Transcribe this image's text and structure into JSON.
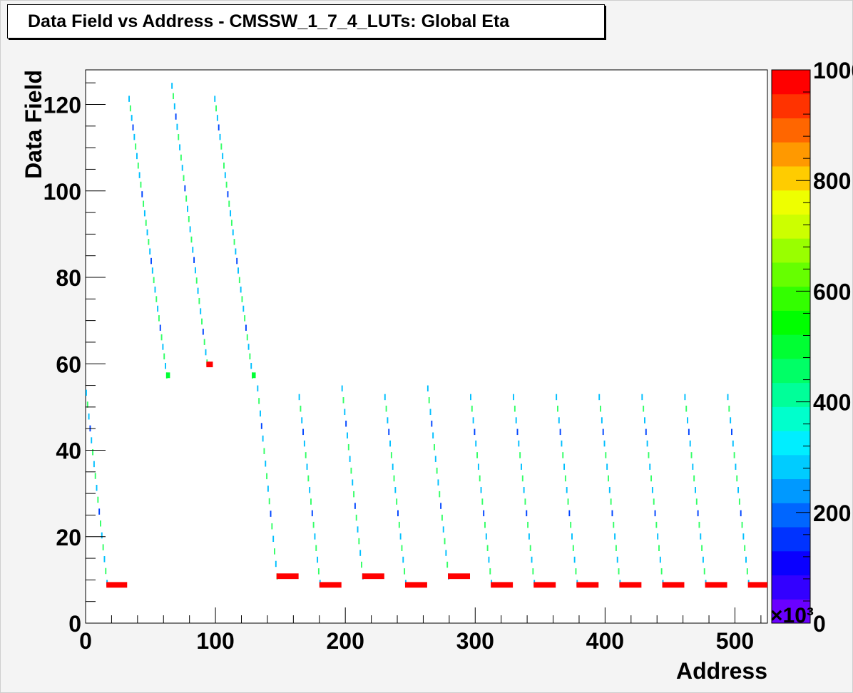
{
  "title": "Data Field vs Address - CMSSW_1_7_4_LUTs: Global Eta",
  "chart_data": {
    "type": "heatmap",
    "xlabel": "Address",
    "ylabel": "Data Field",
    "xlim": [
      0,
      525
    ],
    "ylim": [
      0,
      128
    ],
    "xticks": [
      "0",
      "100",
      "200",
      "300",
      "400",
      "500"
    ],
    "yticks": [
      "0",
      "20",
      "40",
      "60",
      "80",
      "100",
      "120"
    ],
    "z_axis": {
      "range": [
        0,
        1000000
      ],
      "multiplier_label": "×10³",
      "ticks": [
        "0",
        "200",
        "400",
        "600",
        "800",
        "1000"
      ],
      "palette": [
        "#6a00ff",
        "#3300ff",
        "#0a00ff",
        "#0033ff",
        "#0066ff",
        "#0099ff",
        "#00ccff",
        "#00eeff",
        "#00ffcc",
        "#00ff99",
        "#00ff66",
        "#00ff33",
        "#00ff00",
        "#33ff00",
        "#66ff00",
        "#99ff00",
        "#ccff00",
        "#eeff00",
        "#ffcc00",
        "#ff9900",
        "#ff6600",
        "#ff3300",
        "#ff0000"
      ]
    },
    "segments": [
      {
        "x0": 0,
        "x1": 16,
        "y_start": 53,
        "y_end": 9,
        "tail_end": 32,
        "tail_y": 8.5,
        "tail_color": "#ff0000"
      },
      {
        "x0": 33,
        "x1": 62,
        "y_start": 121,
        "y_end": 57,
        "tail_end": 65,
        "tail_y": 57,
        "tail_color": "#00ff33"
      },
      {
        "x0": 66,
        "x1": 93,
        "y_start": 124,
        "y_end": 60,
        "tail_end": 98,
        "tail_y": 59.5,
        "tail_color": "#ff0000"
      },
      {
        "x0": 99,
        "x1": 128,
        "y_start": 121,
        "y_end": 57,
        "tail_end": 131,
        "tail_y": 57,
        "tail_color": "#00ff33"
      },
      {
        "x0": 132,
        "x1": 147,
        "y_start": 54,
        "y_end": 10.5,
        "tail_end": 164,
        "tail_y": 10.5,
        "tail_color": "#ff0000"
      },
      {
        "x0": 164,
        "x1": 180,
        "y_start": 52,
        "y_end": 9,
        "tail_end": 197,
        "tail_y": 8.5,
        "tail_color": "#ff0000"
      },
      {
        "x0": 197,
        "x1": 213,
        "y_start": 54,
        "y_end": 10.5,
        "tail_end": 230,
        "tail_y": 10.5,
        "tail_color": "#ff0000"
      },
      {
        "x0": 230,
        "x1": 246,
        "y_start": 52,
        "y_end": 9,
        "tail_end": 263,
        "tail_y": 8.5,
        "tail_color": "#ff0000"
      },
      {
        "x0": 263,
        "x1": 279,
        "y_start": 54,
        "y_end": 10.5,
        "tail_end": 296,
        "tail_y": 10.5,
        "tail_color": "#ff0000"
      },
      {
        "x0": 296,
        "x1": 312,
        "y_start": 52,
        "y_end": 9,
        "tail_end": 329,
        "tail_y": 8.5,
        "tail_color": "#ff0000"
      },
      {
        "x0": 329,
        "x1": 345,
        "y_start": 52,
        "y_end": 9,
        "tail_end": 362,
        "tail_y": 8.5,
        "tail_color": "#ff0000"
      },
      {
        "x0": 362,
        "x1": 378,
        "y_start": 52,
        "y_end": 9,
        "tail_end": 395,
        "tail_y": 8.5,
        "tail_color": "#ff0000"
      },
      {
        "x0": 395,
        "x1": 411,
        "y_start": 52,
        "y_end": 9,
        "tail_end": 428,
        "tail_y": 8.5,
        "tail_color": "#ff0000"
      },
      {
        "x0": 428,
        "x1": 444,
        "y_start": 52,
        "y_end": 9,
        "tail_end": 461,
        "tail_y": 8.5,
        "tail_color": "#ff0000"
      },
      {
        "x0": 461,
        "x1": 477,
        "y_start": 52,
        "y_end": 9,
        "tail_end": 494,
        "tail_y": 8.5,
        "tail_color": "#ff0000"
      },
      {
        "x0": 494,
        "x1": 510,
        "y_start": 52,
        "y_end": 9,
        "tail_end": 525,
        "tail_y": 8.5,
        "tail_color": "#ff0000"
      }
    ]
  }
}
